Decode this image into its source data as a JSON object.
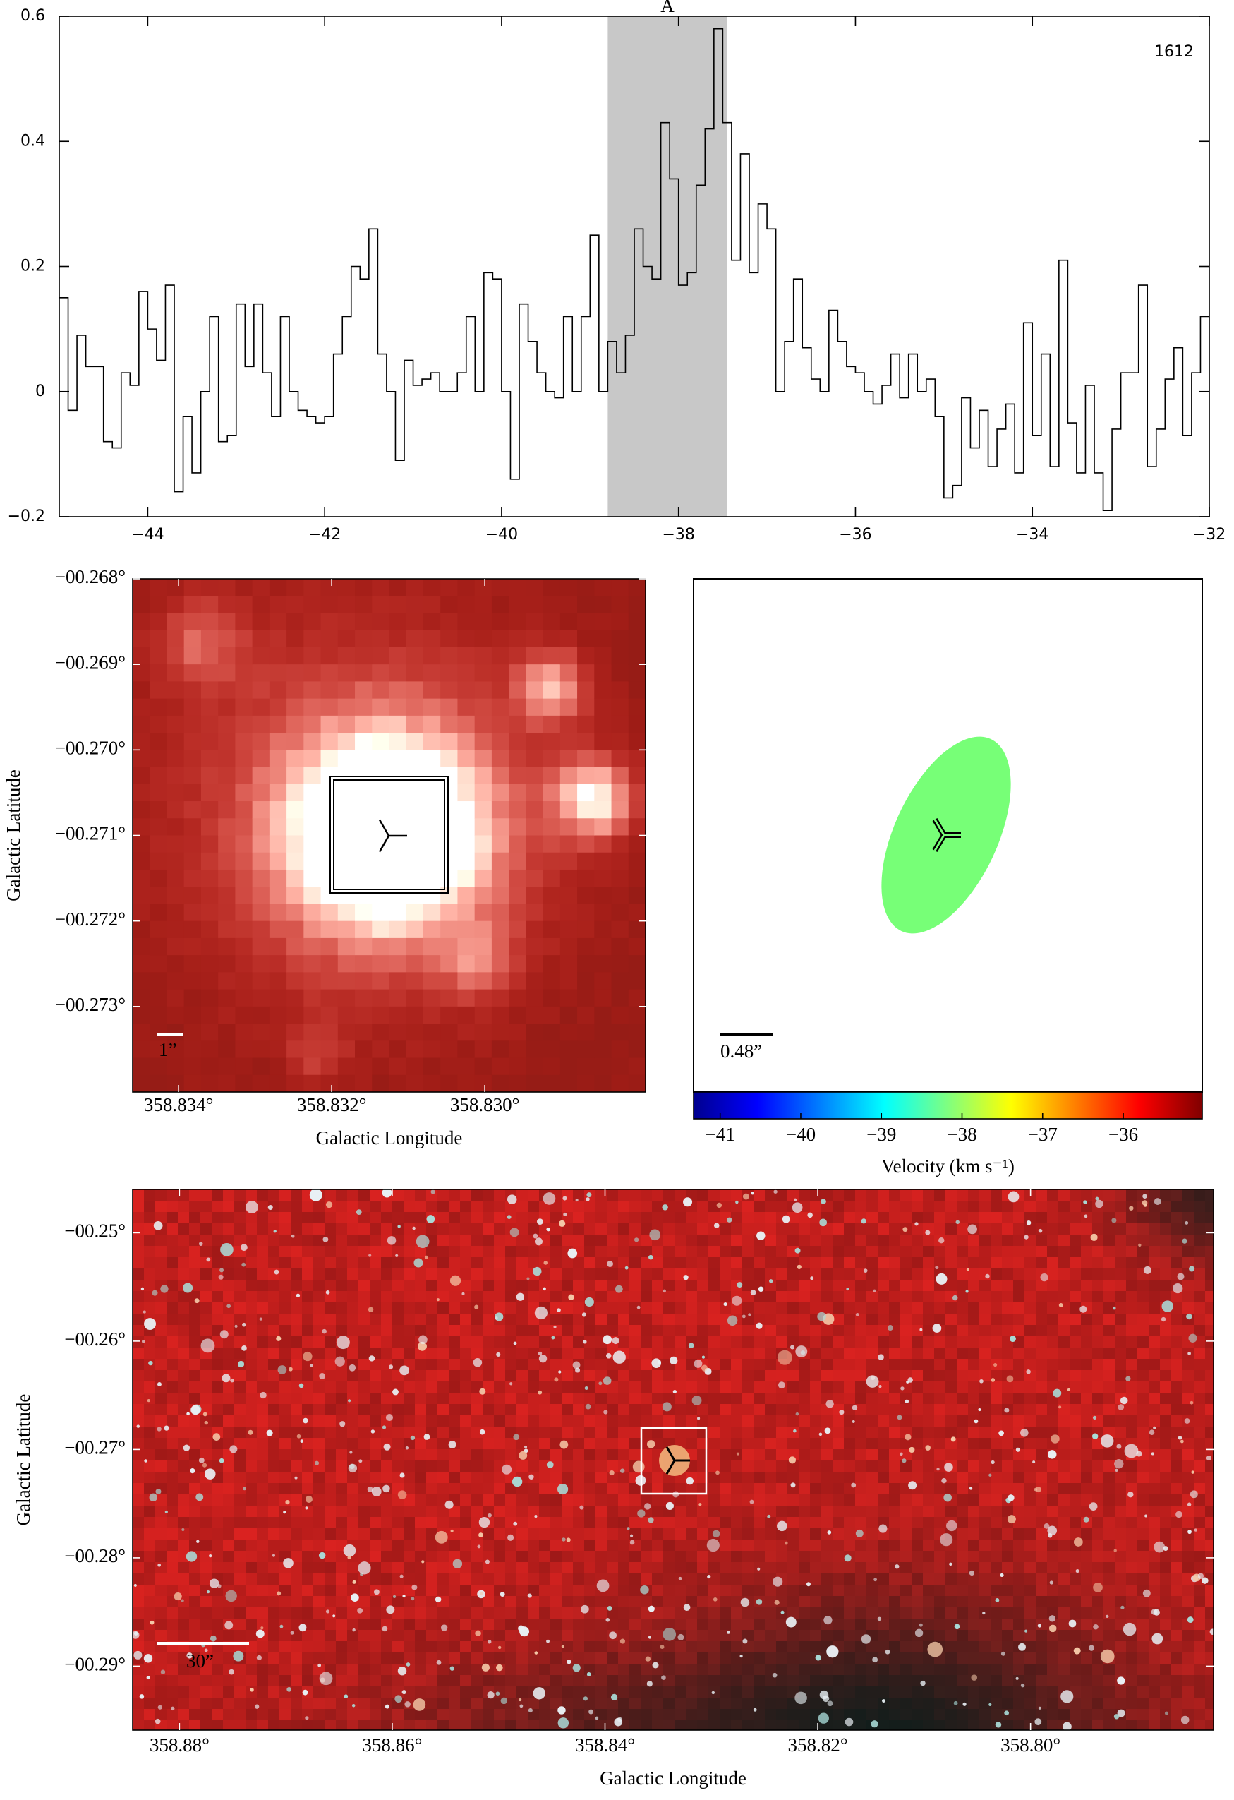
{
  "chart_data": [
    {
      "type": "step",
      "annotation": "1612",
      "color": "#000000",
      "highlight": {
        "label": "A",
        "range": [
          -38.8,
          -37.45
        ],
        "color": "#c8c8c8"
      },
      "x": [
        -45,
        -44.9,
        -44.8,
        -44.7,
        -44.6,
        -44.5,
        -44.4,
        -44.3,
        -44.2,
        -44.1,
        -44,
        -43.9,
        -43.8,
        -43.7,
        -43.6,
        -43.5,
        -43.4,
        -43.3,
        -43.2,
        -43.1,
        -43,
        -42.9,
        -42.8,
        -42.7,
        -42.6,
        -42.5,
        -42.4,
        -42.3,
        -42.2,
        -42.1,
        -42,
        -41.9,
        -41.8,
        -41.7,
        -41.6,
        -41.5,
        -41.4,
        -41.3,
        -41.2,
        -41.1,
        -41,
        -40.9,
        -40.8,
        -40.7,
        -40.6,
        -40.5,
        -40.4,
        -40.3,
        -40.2,
        -40.1,
        -40,
        -39.9,
        -39.8,
        -39.7,
        -39.6,
        -39.5,
        -39.4,
        -39.3,
        -39.2,
        -39.1,
        -39,
        -38.9,
        -38.8,
        -38.7,
        -38.6,
        -38.5,
        -38.4,
        -38.3,
        -38.2,
        -38.1,
        -38,
        -37.9,
        -37.8,
        -37.7,
        -37.6,
        -37.5,
        -37.4,
        -37.3,
        -37.2,
        -37.1,
        -37,
        -36.9,
        -36.8,
        -36.7,
        -36.6,
        -36.5,
        -36.4,
        -36.3,
        -36.2,
        -36.1,
        -36,
        -35.9,
        -35.8,
        -35.7,
        -35.6,
        -35.5,
        -35.4,
        -35.3,
        -35.2,
        -35.1,
        -35,
        -34.9,
        -34.8,
        -34.7,
        -34.6,
        -34.5,
        -34.4,
        -34.3,
        -34.2,
        -34.1,
        -34,
        -33.9,
        -33.8,
        -33.7,
        -33.6,
        -33.5,
        -33.4,
        -33.3,
        -33.2,
        -33.1,
        -33,
        -32.9,
        -32.8,
        -32.7,
        -32.6,
        -32.5,
        -32.4,
        -32.3,
        -32.2,
        -32.1,
        -32
      ],
      "values": [
        0.15,
        -0.03,
        0.09,
        0.04,
        0.04,
        -0.08,
        -0.09,
        0.03,
        0.01,
        0.16,
        0.1,
        0.05,
        0.17,
        -0.16,
        -0.04,
        -0.13,
        0,
        0.12,
        -0.08,
        -0.07,
        0.14,
        0.04,
        0.14,
        0.03,
        -0.04,
        0.12,
        0,
        -0.03,
        -0.04,
        -0.05,
        -0.04,
        0.06,
        0.12,
        0.2,
        0.18,
        0.26,
        0.06,
        0,
        -0.11,
        0.05,
        0.01,
        0.02,
        0.03,
        0,
        0,
        0.03,
        0.12,
        0,
        0.19,
        0.18,
        0,
        -0.14,
        0.14,
        0.08,
        0.03,
        0,
        -0.01,
        0.12,
        0,
        0.12,
        0.25,
        0,
        0.08,
        0.03,
        0.09,
        0.26,
        0.2,
        0.18,
        0.43,
        0.34,
        0.17,
        0.19,
        0.33,
        0.42,
        0.58,
        0.43,
        0.21,
        0.38,
        0.19,
        0.3,
        0.26,
        0,
        0.08,
        0.18,
        0.07,
        0.02,
        0,
        0.13,
        0.08,
        0.04,
        0.03,
        0,
        -0.02,
        0.01,
        0.06,
        -0.01,
        0.06,
        0,
        0.02,
        -0.04,
        -0.17,
        -0.15,
        -0.01,
        -0.09,
        -0.03,
        -0.12,
        -0.06,
        -0.02,
        -0.13,
        0.11,
        -0.07,
        0.06,
        -0.12,
        0.21,
        -0.05,
        -0.13,
        0.01,
        -0.13,
        -0.19,
        -0.06,
        0.03,
        0.03,
        0.17,
        -0.12,
        -0.06,
        0.02,
        0.07,
        -0.07,
        0.03,
        0.12,
        0
      ],
      "xlim": [
        -45,
        -32
      ],
      "ylim": [
        -0.2,
        0.6
      ],
      "xticks": [
        {
          "value": -44,
          "label": "−44"
        },
        {
          "value": -42,
          "label": "−42"
        },
        {
          "value": -40,
          "label": "−40"
        },
        {
          "value": -38,
          "label": "−38"
        },
        {
          "value": -36,
          "label": "−36"
        },
        {
          "value": -34,
          "label": "−34"
        },
        {
          "value": -32,
          "label": "−32"
        }
      ],
      "yticks": [
        {
          "value": -0.2,
          "label": "−0.2"
        },
        0,
        0.2,
        0.4,
        0.6
      ]
    },
    {
      "type": "image",
      "xlabel": "Galactic Longitude",
      "ylabel": "Galactic Latitude",
      "scale_bar": "1”",
      "xlim": [
        358.8346,
        358.8279
      ],
      "ylim": [
        -0.274,
        -0.268
      ],
      "xticks": [
        {
          "value": 358.834,
          "label": "358.834°"
        },
        {
          "value": 358.832,
          "label": "358.832°"
        },
        {
          "value": 358.83,
          "label": "358.830°"
        }
      ],
      "yticks": [
        {
          "value": -0.268,
          "label": "−00.268°"
        },
        {
          "value": -0.269,
          "label": "−00.269°"
        },
        {
          "value": -0.27,
          "label": "−00.270°"
        },
        {
          "value": -0.271,
          "label": "−00.271°"
        },
        {
          "value": -0.272,
          "label": "−00.272°"
        },
        {
          "value": -0.273,
          "label": "−00.273°"
        }
      ]
    },
    {
      "type": "ellipse",
      "scale_bar": "0.48”",
      "color": "#77ff77",
      "colorbar": {
        "label": "Velocity (km s⁻¹)",
        "lim": [
          -41.33,
          -35.02
        ],
        "ticks": [
          {
            "value": -41,
            "label": "−41"
          },
          {
            "value": -40,
            "label": "−40"
          },
          {
            "value": -39,
            "label": "−39"
          },
          {
            "value": -38,
            "label": "−38"
          },
          {
            "value": -37,
            "label": "−37"
          },
          {
            "value": -36,
            "label": "−36"
          }
        ]
      }
    },
    {
      "type": "image",
      "xlabel": "Galactic Longitude",
      "ylabel": "Galactic Latitude",
      "scale_bar": "30”",
      "xlim": [
        358.8844,
        358.7828
      ],
      "ylim": [
        -0.2959,
        -0.246
      ],
      "xticks": [
        {
          "value": 358.88,
          "label": "358.88°"
        },
        {
          "value": 358.86,
          "label": "358.86°"
        },
        {
          "value": 358.84,
          "label": "358.84°"
        },
        {
          "value": 358.82,
          "label": "358.82°"
        },
        {
          "value": 358.8,
          "label": "358.80°"
        }
      ],
      "yticks": [
        {
          "value": -0.25,
          "label": "−00.25°"
        },
        {
          "value": -0.26,
          "label": "−00.26°"
        },
        {
          "value": -0.27,
          "label": "−00.27°"
        },
        {
          "value": -0.28,
          "label": "−00.28°"
        },
        {
          "value": -0.29,
          "label": "−00.29°"
        }
      ]
    }
  ]
}
